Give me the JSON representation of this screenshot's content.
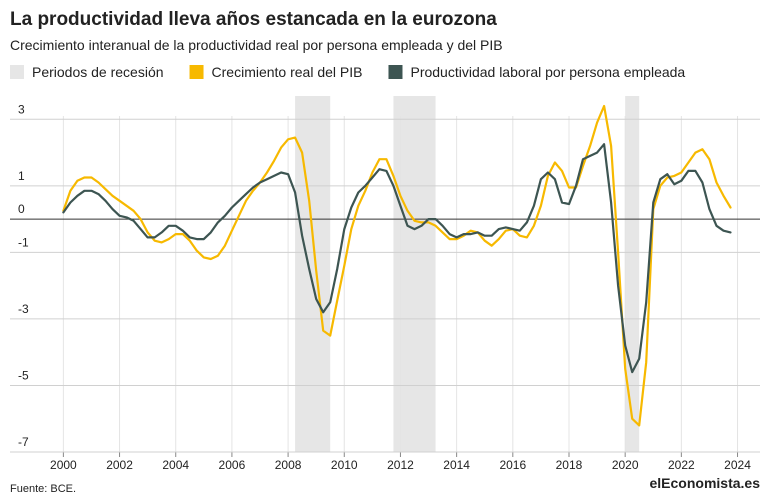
{
  "chart_data": {
    "type": "line",
    "title": "La productividad lleva años estancada en la eurozona",
    "subtitle": "Crecimiento interanual de la productividad real por persona empleada y del PIB",
    "source": "Fuente: BCE.",
    "logo": "elEconomista.es",
    "recessions": {
      "name": "Periodos de recesión",
      "color": "#e6e6e6",
      "spans": [
        [
          2008.25,
          2009.5
        ],
        [
          2011.75,
          2013.25
        ],
        [
          2020.0,
          2020.5
        ]
      ]
    },
    "x": [
      2000,
      2000.25,
      2000.5,
      2000.75,
      2001,
      2001.25,
      2001.5,
      2001.75,
      2002,
      2002.25,
      2002.5,
      2002.75,
      2003,
      2003.25,
      2003.5,
      2003.75,
      2004,
      2004.25,
      2004.5,
      2004.75,
      2005,
      2005.25,
      2005.5,
      2005.75,
      2006,
      2006.25,
      2006.5,
      2006.75,
      2007,
      2007.25,
      2007.5,
      2007.75,
      2008,
      2008.25,
      2008.5,
      2008.75,
      2009,
      2009.25,
      2009.5,
      2009.75,
      2010,
      2010.25,
      2010.5,
      2010.75,
      2011,
      2011.25,
      2011.5,
      2011.75,
      2012,
      2012.25,
      2012.5,
      2012.75,
      2013,
      2013.25,
      2013.5,
      2013.75,
      2014,
      2014.25,
      2014.5,
      2014.75,
      2015,
      2015.25,
      2015.5,
      2015.75,
      2016,
      2016.25,
      2016.5,
      2016.75,
      2017,
      2017.25,
      2017.5,
      2017.75,
      2018,
      2018.25,
      2018.5,
      2018.75,
      2019,
      2019.25,
      2019.5,
      2019.75,
      2020,
      2020.25,
      2020.5,
      2020.75,
      2021,
      2021.25,
      2021.5,
      2021.75,
      2022,
      2022.25,
      2022.5,
      2022.75,
      2023,
      2023.25,
      2023.5,
      2023.75
    ],
    "series": [
      {
        "name": "Crecimiento real del PIB",
        "color": "#f7b900",
        "values": [
          0.25,
          0.85,
          1.15,
          1.25,
          1.25,
          1.1,
          0.9,
          0.7,
          0.55,
          0.4,
          0.25,
          0,
          -0.4,
          -0.65,
          -0.7,
          -0.6,
          -0.45,
          -0.45,
          -0.65,
          -0.95,
          -1.15,
          -1.2,
          -1.1,
          -0.8,
          -0.35,
          0.1,
          0.55,
          0.85,
          1.1,
          1.4,
          1.75,
          2.15,
          2.4,
          2.45,
          2.0,
          0.55,
          -1.55,
          -3.35,
          -3.5,
          -2.45,
          -1.4,
          -0.3,
          0.4,
          0.85,
          1.4,
          1.8,
          1.8,
          1.3,
          0.7,
          0.25,
          -0.05,
          -0.1,
          -0.1,
          -0.2,
          -0.4,
          -0.6,
          -0.6,
          -0.5,
          -0.35,
          -0.4,
          -0.65,
          -0.8,
          -0.6,
          -0.35,
          -0.3,
          -0.5,
          -0.55,
          -0.2,
          0.4,
          1.3,
          1.7,
          1.45,
          0.95,
          0.95,
          1.6,
          2.2,
          2.9,
          3.4,
          2.2,
          -1.0,
          -4.5,
          -6.0,
          -6.2,
          -4.3,
          0.3,
          1.0,
          1.25,
          1.3,
          1.4,
          1.7,
          2.0,
          2.1,
          1.8,
          1.1,
          0.7,
          0.35
        ]
      },
      {
        "name": "Productividad laboral por persona empleada",
        "color": "#3d5552",
        "values": [
          0.2,
          0.5,
          0.7,
          0.85,
          0.85,
          0.75,
          0.55,
          0.3,
          0.1,
          0.05,
          -0.05,
          -0.3,
          -0.55,
          -0.55,
          -0.4,
          -0.2,
          -0.2,
          -0.35,
          -0.55,
          -0.6,
          -0.6,
          -0.4,
          -0.1,
          0.1,
          0.35,
          0.55,
          0.75,
          0.95,
          1.1,
          1.2,
          1.3,
          1.4,
          1.35,
          0.8,
          -0.5,
          -1.5,
          -2.4,
          -2.8,
          -2.5,
          -1.5,
          -0.3,
          0.35,
          0.8,
          1.0,
          1.25,
          1.5,
          1.45,
          1.0,
          0.4,
          -0.2,
          -0.3,
          -0.2,
          0,
          0,
          -0.2,
          -0.45,
          -0.55,
          -0.45,
          -0.45,
          -0.4,
          -0.5,
          -0.5,
          -0.3,
          -0.25,
          -0.3,
          -0.35,
          -0.1,
          0.4,
          1.2,
          1.4,
          1.2,
          0.5,
          0.45,
          1.0,
          1.8,
          1.9,
          2.0,
          2.25,
          0.5,
          -2.0,
          -3.8,
          -4.6,
          -4.2,
          -2.5,
          0.5,
          1.2,
          1.35,
          1.05,
          1.15,
          1.45,
          1.45,
          1.1,
          0.3,
          -0.2,
          -0.35,
          -0.4
        ]
      }
    ],
    "xlim": [
      1998.1,
      2024.8
    ],
    "xticks": [
      2000,
      2002,
      2004,
      2006,
      2008,
      2010,
      2012,
      2014,
      2016,
      2018,
      2020,
      2022,
      2024
    ],
    "ylim": [
      -7,
      3.7
    ],
    "yticks": [
      -7,
      -5,
      -3,
      -1,
      0,
      1,
      3
    ],
    "grid": true
  }
}
